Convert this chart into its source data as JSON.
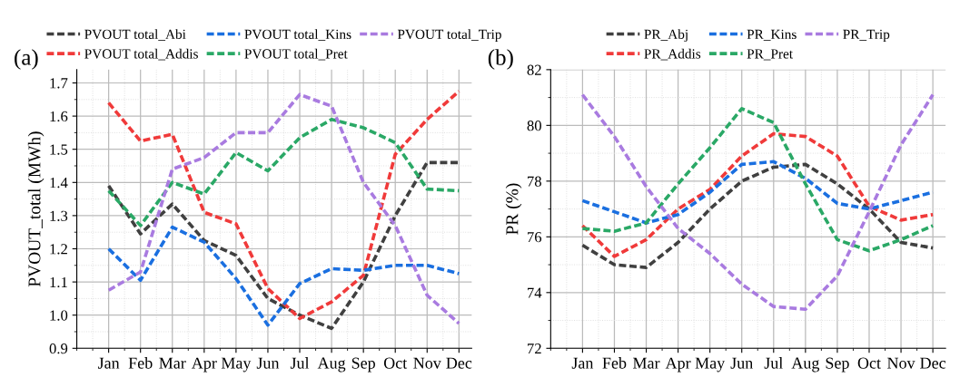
{
  "chart_data": [
    {
      "type": "line",
      "ylabel": "PVOUT_total (MWh)",
      "annotations": [
        "(a)"
      ],
      "categories": [
        "Jan",
        "Feb",
        "Mar",
        "Apr",
        "May",
        "Jun",
        "Jul",
        "Aug",
        "Sep",
        "Oct",
        "Nov",
        "Dec"
      ],
      "ylim": [
        0.9,
        1.74
      ],
      "yticks": [
        {
          "value": 0.9,
          "label": "0.9"
        },
        {
          "value": 1.0,
          "label": "1.0"
        },
        1.1,
        1.2,
        1.3,
        1.4,
        1.5,
        1.6,
        1.7
      ],
      "grid": true,
      "legend": "top",
      "line_style": "dashed",
      "marker": "none",
      "series": [
        {
          "name": "PVOUT total_Abi",
          "color": "#404040",
          "values": [
            1.39,
            1.245,
            1.335,
            1.225,
            1.18,
            1.05,
            1.0,
            0.96,
            1.1,
            1.3,
            1.46,
            1.46
          ]
        },
        {
          "name": "PVOUT total_Addis",
          "color": "#f03a3a",
          "values": [
            1.64,
            1.525,
            1.545,
            1.31,
            1.275,
            1.08,
            0.99,
            1.04,
            1.12,
            1.485,
            1.59,
            1.675
          ]
        },
        {
          "name": "PVOUT total_Kins",
          "color": "#1a6fe0",
          "values": [
            1.2,
            1.105,
            1.265,
            1.22,
            1.11,
            0.97,
            1.095,
            1.14,
            1.135,
            1.15,
            1.15,
            1.125
          ]
        },
        {
          "name": "PVOUT total_Pret",
          "color": "#2aa866",
          "values": [
            1.375,
            1.27,
            1.4,
            1.365,
            1.49,
            1.435,
            1.535,
            1.59,
            1.565,
            1.52,
            1.38,
            1.375
          ]
        },
        {
          "name": "PVOUT total_Trip",
          "color": "#a97be0",
          "values": [
            1.075,
            1.13,
            1.44,
            1.475,
            1.55,
            1.55,
            1.665,
            1.63,
            1.4,
            1.27,
            1.06,
            0.975
          ]
        }
      ]
    },
    {
      "type": "line",
      "ylabel": "PR (%)",
      "annotations": [
        "(b)"
      ],
      "categories": [
        "Jan",
        "Feb",
        "Mar",
        "Apr",
        "May",
        "Jun",
        "Jul",
        "Aug",
        "Sep",
        "Oct",
        "Nov",
        "Dec"
      ],
      "ylim": [
        72,
        82
      ],
      "yticks": [
        72,
        74,
        76,
        78,
        80,
        82
      ],
      "grid": true,
      "legend": "top",
      "line_style": "dashed",
      "marker": "none",
      "series": [
        {
          "name": "PR_Abj",
          "color": "#404040",
          "values": [
            75.7,
            75.0,
            74.9,
            75.8,
            77.0,
            78.0,
            78.5,
            78.6,
            77.9,
            77.0,
            75.8,
            75.6
          ]
        },
        {
          "name": "PR_Addis",
          "color": "#f03a3a",
          "values": [
            76.4,
            75.3,
            75.9,
            77.0,
            77.7,
            78.9,
            79.7,
            79.6,
            78.9,
            77.1,
            76.6,
            76.8
          ]
        },
        {
          "name": "PR_Kins",
          "color": "#1a6fe0",
          "values": [
            77.3,
            76.9,
            76.5,
            76.8,
            77.6,
            78.6,
            78.7,
            78.1,
            77.2,
            77.0,
            77.3,
            77.6
          ]
        },
        {
          "name": "PR_Pret",
          "color": "#2aa866",
          "values": [
            76.3,
            76.2,
            76.5,
            77.9,
            79.2,
            80.6,
            80.1,
            77.9,
            75.9,
            75.5,
            75.9,
            76.4
          ]
        },
        {
          "name": "PR_Trip",
          "color": "#a97be0",
          "values": [
            81.1,
            79.6,
            77.8,
            76.3,
            75.4,
            74.3,
            73.5,
            73.4,
            74.6,
            76.9,
            79.3,
            81.1
          ]
        }
      ]
    }
  ]
}
